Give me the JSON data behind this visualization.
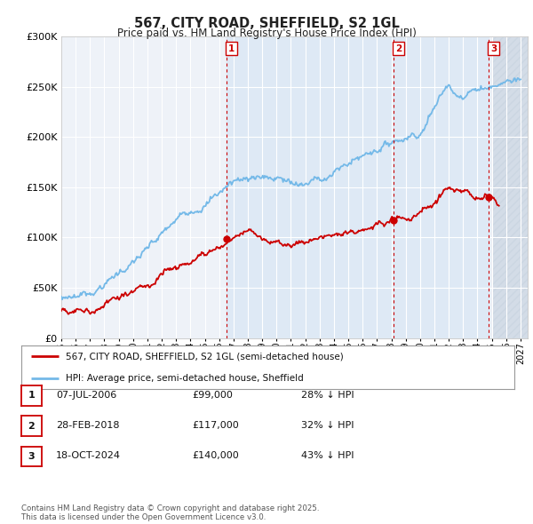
{
  "title_line1": "567, CITY ROAD, SHEFFIELD, S2 1GL",
  "title_line2": "Price paid vs. HM Land Registry's House Price Index (HPI)",
  "ylim": [
    0,
    300000
  ],
  "yticks": [
    0,
    50000,
    100000,
    150000,
    200000,
    250000,
    300000
  ],
  "ytick_labels": [
    "£0",
    "£50K",
    "£100K",
    "£150K",
    "£200K",
    "£250K",
    "£300K"
  ],
  "xlim_start": 1995.0,
  "xlim_end": 2027.5,
  "hpi_color": "#74b9e8",
  "price_color": "#cc0000",
  "vline_color": "#cc0000",
  "background_color": "#ffffff",
  "plot_bg_color": "#eef2f8",
  "grid_color": "#ffffff",
  "shade_color": "#dce8f5",
  "hatch_color": "#c8d4e0",
  "sale_points": [
    {
      "year": 2006.52,
      "price": 99000,
      "label": "1"
    },
    {
      "year": 2018.17,
      "price": 117000,
      "label": "2"
    },
    {
      "year": 2024.8,
      "price": 140000,
      "label": "3"
    }
  ],
  "legend_entry1": "567, CITY ROAD, SHEFFIELD, S2 1GL (semi-detached house)",
  "legend_entry2": "HPI: Average price, semi-detached house, Sheffield",
  "table_rows": [
    {
      "label": "1",
      "date": "07-JUL-2006",
      "price": "£99,000",
      "pct": "28% ↓ HPI"
    },
    {
      "label": "2",
      "date": "28-FEB-2018",
      "price": "£117,000",
      "pct": "32% ↓ HPI"
    },
    {
      "label": "3",
      "date": "18-OCT-2024",
      "price": "£140,000",
      "pct": "43% ↓ HPI"
    }
  ],
  "footer": "Contains HM Land Registry data © Crown copyright and database right 2025.\nThis data is licensed under the Open Government Licence v3.0.",
  "marker_label_color": "#cc0000"
}
